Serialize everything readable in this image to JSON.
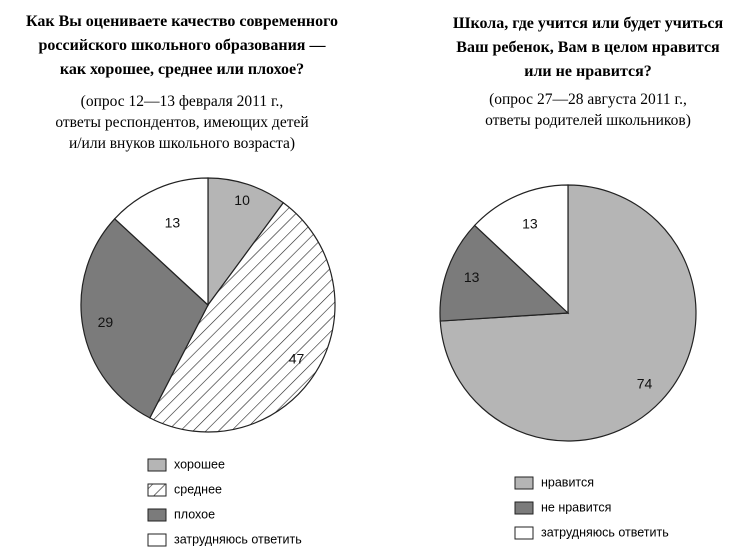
{
  "chart_data": [
    {
      "type": "pie",
      "title": [
        "Как Вы оцениваете качество современного",
        "российского школьного образования —",
        "как  хорошее, среднее или плохое?"
      ],
      "subtitle": [
        "(опрос 12—13 февраля 2011 г.,",
        "ответы респондентов, имеющих детей",
        "и/или внуков школьного возраста)"
      ],
      "categories": [
        "хорошее",
        "среднее",
        "плохое",
        "затрудняюсь ответить"
      ],
      "values": [
        10,
        47,
        29,
        13
      ],
      "colors": [
        "#b5b5b5",
        "#ffffff",
        "#7b7b7b",
        "#ffffff"
      ],
      "hatched": [
        false,
        true,
        false,
        false
      ]
    },
    {
      "type": "pie",
      "title": [
        "Школа, где учится или будет учиться",
        "Ваш ребенок, Вам в целом нравится",
        "или не нравится?"
      ],
      "subtitle": [
        "(опрос 27—28 августа 2011 г.,",
        "ответы родителей школьников)"
      ],
      "categories": [
        "нравится",
        "не нравится",
        "затрудняюсь ответить"
      ],
      "values": [
        74,
        13,
        13
      ],
      "colors": [
        "#b5b5b5",
        "#7b7b7b",
        "#ffffff"
      ],
      "hatched": [
        false,
        false,
        false
      ]
    }
  ]
}
